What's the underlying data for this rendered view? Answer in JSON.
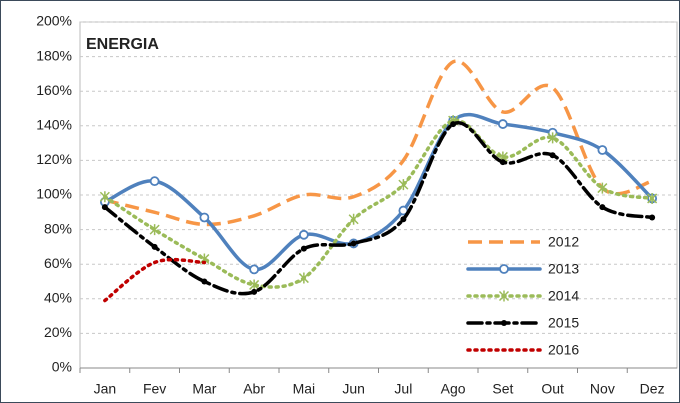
{
  "chart_data": {
    "type": "line",
    "title": "ENERGIA",
    "categories": [
      "Jan",
      "Fev",
      "Mar",
      "Abr",
      "Mai",
      "Jun",
      "Jul",
      "Ago",
      "Set",
      "Out",
      "Nov",
      "Dez"
    ],
    "ylim": [
      0,
      200
    ],
    "yticks": [
      {
        "value": 0,
        "label": "0%"
      },
      {
        "value": 20,
        "label": "20%"
      },
      {
        "value": 40,
        "label": "40%"
      },
      {
        "value": 60,
        "label": "60%"
      },
      {
        "value": 80,
        "label": "80%"
      },
      {
        "value": 100,
        "label": "100%"
      },
      {
        "value": 120,
        "label": "120%"
      },
      {
        "value": 140,
        "label": "140%"
      },
      {
        "value": 160,
        "label": "160%"
      },
      {
        "value": 180,
        "label": "180%"
      },
      {
        "value": 200,
        "label": "200%"
      }
    ],
    "grid": true,
    "smooth": true,
    "legend": "lower right",
    "series": [
      {
        "name": "2012",
        "color": "#f79646",
        "style": "dashed",
        "marker": "none",
        "values": [
          97,
          90,
          83,
          88,
          100,
          99,
          120,
          177,
          148,
          162,
          104,
          108
        ]
      },
      {
        "name": "2013",
        "color": "#4f81bd",
        "style": "solid",
        "marker": "circle",
        "values": [
          96,
          108,
          87,
          57,
          77,
          72,
          91,
          143,
          141,
          136,
          126,
          98
        ]
      },
      {
        "name": "2014",
        "color": "#9bbb59",
        "style": "dotted",
        "marker": "star",
        "values": [
          99,
          80,
          63,
          48,
          52,
          86,
          106,
          143,
          122,
          133,
          104,
          98
        ]
      },
      {
        "name": "2015",
        "color": "#000000",
        "style": "dashdot",
        "marker": "dot",
        "values": [
          93,
          70,
          50,
          44,
          69,
          72,
          86,
          141,
          119,
          123,
          93,
          87
        ]
      },
      {
        "name": "2016",
        "color": "#c00000",
        "style": "dotted",
        "marker": "none",
        "values": [
          39,
          61,
          61,
          null,
          null,
          null,
          null,
          null,
          null,
          null,
          null,
          null
        ]
      }
    ]
  }
}
